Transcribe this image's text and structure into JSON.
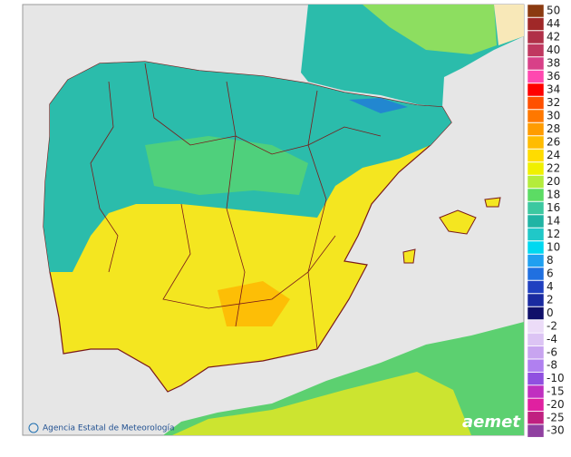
{
  "legend": [
    {
      "label": "50",
      "color": "#8b3a10"
    },
    {
      "label": "44",
      "color": "#a02828"
    },
    {
      "label": "42",
      "color": "#b03048"
    },
    {
      "label": "40",
      "color": "#c03860"
    },
    {
      "label": "38",
      "color": "#d84088"
    },
    {
      "label": "36",
      "color": "#ff48b0"
    },
    {
      "label": "34",
      "color": "#ff0000"
    },
    {
      "label": "32",
      "color": "#ff5000"
    },
    {
      "label": "30",
      "color": "#ff7800"
    },
    {
      "label": "28",
      "color": "#ff9c00"
    },
    {
      "label": "26",
      "color": "#ffbc00"
    },
    {
      "label": "24",
      "color": "#ffdc00"
    },
    {
      "label": "22",
      "color": "#f0f000"
    },
    {
      "label": "20",
      "color": "#b4ec3c"
    },
    {
      "label": "18",
      "color": "#5cdc64"
    },
    {
      "label": "16",
      "color": "#3cc8a0"
    },
    {
      "label": "14",
      "color": "#20b4a4"
    },
    {
      "label": "12",
      "color": "#20c8c8"
    },
    {
      "label": "10",
      "color": "#00d8f0"
    },
    {
      "label": "8",
      "color": "#20a0f0"
    },
    {
      "label": "6",
      "color": "#2070e0"
    },
    {
      "label": "4",
      "color": "#2040c0"
    },
    {
      "label": "2",
      "color": "#1a2aa0"
    },
    {
      "label": "0",
      "color": "#10106a"
    },
    {
      "label": "-2",
      "color": "#ecdcf8"
    },
    {
      "label": "-4",
      "color": "#dcc4f4"
    },
    {
      "label": "-6",
      "color": "#c8a4f0"
    },
    {
      "label": "-8",
      "color": "#b080f0"
    },
    {
      "label": "-10",
      "color": "#9050e0"
    },
    {
      "label": "-15",
      "color": "#c030c0"
    },
    {
      "label": "-20",
      "color": "#e020a0"
    },
    {
      "label": "-25",
      "color": "#c02080"
    },
    {
      "label": "-30",
      "color": "#9040a0"
    }
  ],
  "attribution": "Agencia Estatal de Meteorología",
  "logo": "aemet"
}
